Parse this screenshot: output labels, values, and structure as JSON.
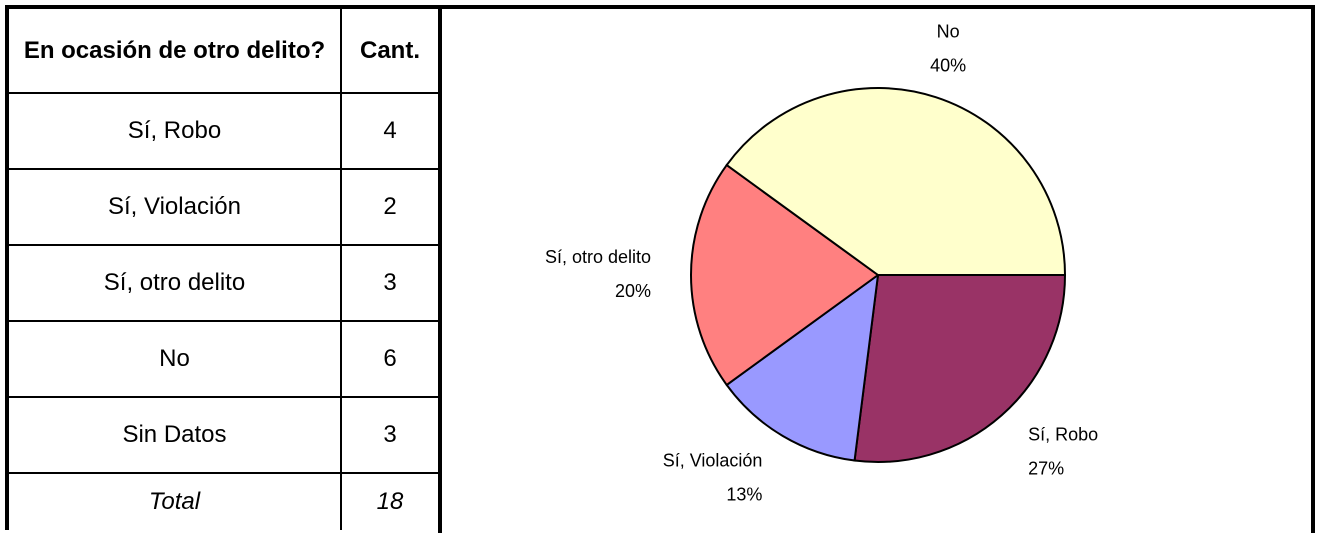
{
  "table": {
    "header": [
      "En ocasión de otro delito?",
      "Cant."
    ],
    "rows": [
      [
        "Sí, Robo",
        4
      ],
      [
        "Sí, Violación",
        2
      ],
      [
        "Sí, otro delito",
        3
      ],
      [
        "No",
        6
      ],
      [
        "Sin Datos",
        3
      ]
    ],
    "total": [
      "Total",
      18
    ]
  },
  "chart_data": {
    "type": "pie",
    "categories": [
      "Sí, Robo",
      "Sí, Violación",
      "Sí, otro delito",
      "No"
    ],
    "values": [
      27,
      13,
      20,
      40
    ],
    "value_labels": [
      "27%",
      "13%",
      "20%",
      "40%"
    ],
    "colors": [
      "#993366",
      "#9999ff",
      "#ff8080",
      "#ffffcc"
    ]
  }
}
